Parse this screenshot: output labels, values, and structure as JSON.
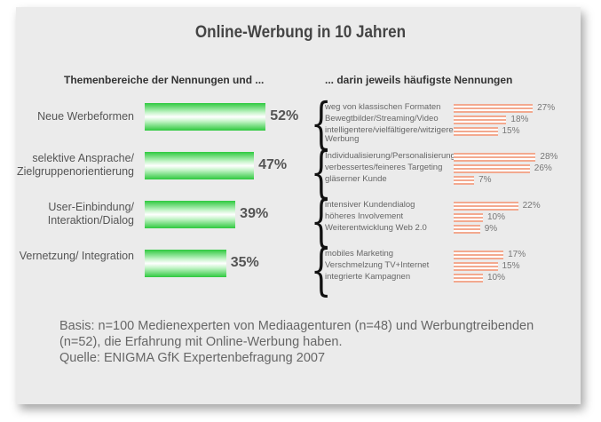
{
  "chart_data": {
    "type": "bar",
    "title": "Online-Werbung in 10 Jahren",
    "left_header": "Themenbereiche der Nennungen und ...",
    "right_header": "... darin jeweils häufigste Nennungen",
    "categories": [
      "Neue Werbeformen",
      "selektive Ansprache/ Zielgruppenorientierung",
      "User-Einbindung/ Interaktion/Dialog",
      "Vernetzung/ Integration"
    ],
    "values": [
      52,
      47,
      39,
      35
    ],
    "value_labels": [
      "52%",
      "47%",
      "39%",
      "35%"
    ],
    "details": [
      {
        "items": [
          "weg von klassischen Formaten",
          "Bewegtbilder/Streaming/Video",
          "intelligentere/vielfältigere/witzigere Werbung"
        ],
        "values": [
          27,
          18,
          15
        ],
        "labels": [
          "27%",
          "18%",
          "15%"
        ]
      },
      {
        "items": [
          "Individualisierung/Personalisierung",
          "verbessertes/feineres Targeting",
          "gläserner Kunde"
        ],
        "values": [
          28,
          26,
          7
        ],
        "labels": [
          "28%",
          "26%",
          "7%"
        ]
      },
      {
        "items": [
          "intensiver Kundendialog",
          "höheres Involvement",
          "Weiterentwicklung Web 2.0"
        ],
        "values": [
          22,
          10,
          9
        ],
        "labels": [
          "22%",
          "10%",
          "9%"
        ]
      },
      {
        "items": [
          "mobiles Marketing",
          "Verschmelzung TV+Internet",
          "integrierte Kampagnen"
        ],
        "values": [
          17,
          15,
          10
        ],
        "labels": [
          "17%",
          "15%",
          "10%"
        ]
      }
    ],
    "colors": {
      "main_bar": "#2ec93e",
      "detail_bar": "#f3a98f"
    }
  },
  "footer": {
    "line1": "Basis: n=100 Medienexperten von Mediaagenturen (n=48) und Werbungtreibenden (n=52), die Erfahrung mit Online-Werbung haben.",
    "line2": "Quelle: ENIGMA GfK Expertenbefragung 2007"
  }
}
